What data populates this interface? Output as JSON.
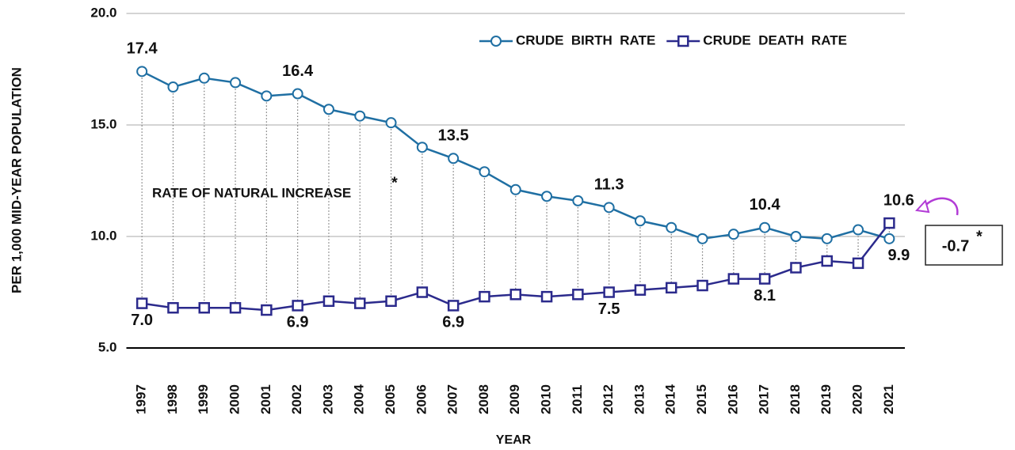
{
  "chart_data": {
    "type": "line",
    "y_label": "PER 1,000 MID-YEAR POPULATION",
    "x_label": "YEAR",
    "categories": [
      "1997",
      "1998",
      "1999",
      "2000",
      "2001",
      "2002",
      "2003",
      "2004",
      "2005",
      "2006",
      "2007",
      "2008",
      "2009",
      "2010",
      "2011",
      "2012",
      "2013",
      "2014",
      "2015",
      "2016",
      "2017",
      "2018",
      "2019",
      "2020",
      "2021"
    ],
    "series": [
      {
        "name": "CRUDE  BIRTH  RATE",
        "color": "#1f6fa3",
        "marker": "circle",
        "values": [
          17.4,
          16.7,
          17.1,
          16.9,
          16.3,
          16.4,
          15.7,
          15.4,
          15.1,
          14.0,
          13.5,
          12.9,
          12.1,
          11.8,
          11.6,
          11.3,
          10.7,
          10.4,
          9.9,
          10.1,
          10.4,
          10.0,
          9.9,
          10.3,
          9.9
        ],
        "value_labels": [
          "17.4",
          null,
          null,
          null,
          null,
          "16.4",
          null,
          null,
          null,
          null,
          "13.5",
          null,
          null,
          null,
          null,
          "11.3",
          null,
          null,
          null,
          null,
          "10.4",
          null,
          null,
          null,
          "9.9"
        ]
      },
      {
        "name": "CRUDE  DEATH  RATE",
        "color": "#2b2a8c",
        "marker": "square",
        "values": [
          7.0,
          6.8,
          6.8,
          6.8,
          6.7,
          6.9,
          7.1,
          7.0,
          7.1,
          7.5,
          6.9,
          7.3,
          7.4,
          7.3,
          7.4,
          7.5,
          7.6,
          7.7,
          7.8,
          8.1,
          8.1,
          8.6,
          8.9,
          8.8,
          10.6
        ],
        "value_labels": [
          "7.0",
          null,
          null,
          null,
          null,
          "6.9",
          null,
          null,
          null,
          null,
          "6.9",
          null,
          null,
          null,
          null,
          "7.5",
          null,
          null,
          null,
          null,
          "8.1",
          null,
          null,
          null,
          "10.6"
        ]
      }
    ],
    "ylim": [
      5,
      20
    ],
    "yticks": [
      {
        "value": 5,
        "label": "5.0"
      },
      {
        "value": 10,
        "label": "10.0"
      },
      {
        "value": 15,
        "label": "15.0"
      },
      {
        "value": 20,
        "label": "20.0"
      }
    ],
    "grid": true,
    "legend": "top-right",
    "annotations": [
      {
        "text": "RATE OF NATURAL INCREASE",
        "mark": "*"
      },
      {
        "text": "-0.7",
        "mark": "*"
      }
    ]
  }
}
